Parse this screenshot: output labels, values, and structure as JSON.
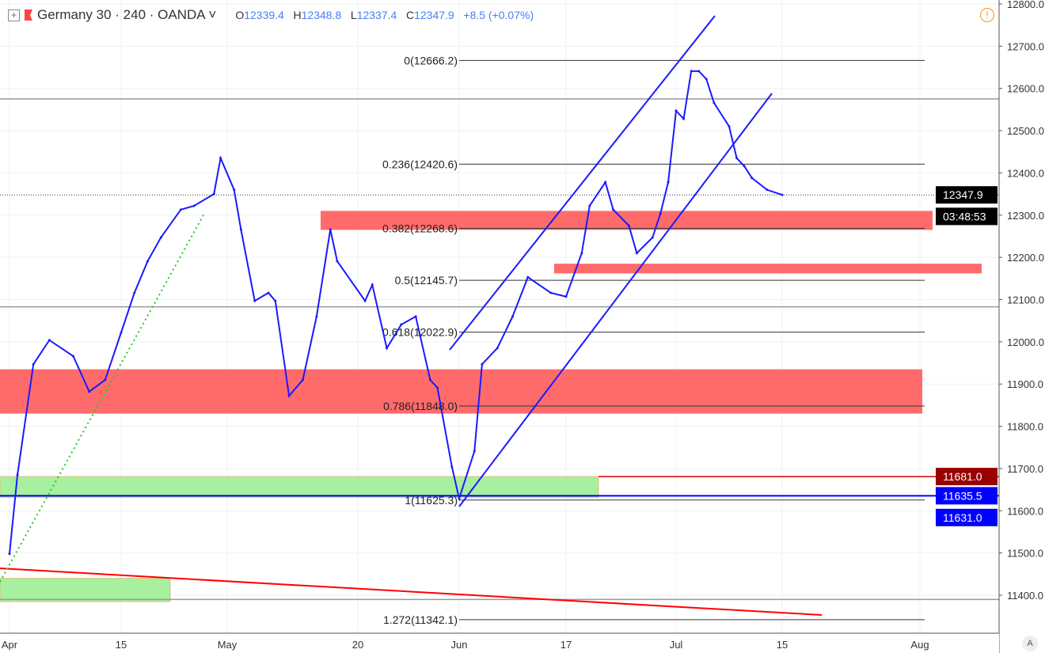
{
  "header": {
    "symbol": "Germany 30",
    "interval": "240",
    "broker": "OANDA",
    "open_label": "O",
    "open": "12339.4",
    "high_label": "H",
    "high": "12348.8",
    "low_label": "L",
    "low": "12337.4",
    "close_label": "C",
    "close": "12347.9",
    "change": "+8.5 (+0.07%)"
  },
  "auto_label": "A",
  "warning_icon": "!",
  "chart_data": {
    "type": "line",
    "title": "",
    "colors": {
      "price": "#1a1aff",
      "zone_red": "#ff6b6b",
      "zone_green": "#a6f0a0",
      "channel": "#1a1aff",
      "trend_red": "#ff0000",
      "fib": "#333333"
    },
    "ylim": [
      11400,
      12800
    ],
    "y_ticks": [
      11400,
      11500,
      11600,
      11700,
      11800,
      11900,
      12000,
      12100,
      12200,
      12300,
      12400,
      12500,
      12600,
      12700,
      12800
    ],
    "y_tick_labels": [
      "11400.0",
      "11500.0",
      "11600.0",
      "11700.0",
      "11800.0",
      "11900.0",
      "12000.0",
      "12100.0",
      "12200.0",
      "12300.0",
      "12400.0",
      "12500.0",
      "12600.0",
      "12700.0",
      "12800.0"
    ],
    "x_ticks": [
      {
        "date": "2019-04-01",
        "label": "Apr"
      },
      {
        "date": "2019-04-15",
        "label": "15"
      },
      {
        "date": "2019-05-01",
        "label": "May"
      },
      {
        "date": "2019-05-20",
        "label": "20"
      },
      {
        "date": "2019-06-03",
        "label": "Jun"
      },
      {
        "date": "2019-06-17",
        "label": "17"
      },
      {
        "date": "2019-07-01",
        "label": "Jul"
      },
      {
        "date": "2019-07-15",
        "label": "15"
      },
      {
        "date": "2019-08-01",
        "label": "Aug"
      }
    ],
    "series": [
      {
        "x": [
          "2019-04-01",
          "2019-04-02",
          "2019-04-04",
          "2019-04-06",
          "2019-04-09",
          "2019-04-11",
          "2019-04-13",
          "2019-04-15",
          "2019-04-17",
          "2019-04-19",
          "2019-04-21",
          "2019-04-24",
          "2019-04-26",
          "2019-04-29",
          "2019-04-30",
          "2019-05-02",
          "2019-05-03",
          "2019-05-05",
          "2019-05-07",
          "2019-05-08",
          "2019-05-10",
          "2019-05-12",
          "2019-05-14",
          "2019-05-16",
          "2019-05-17",
          "2019-05-21",
          "2019-05-22",
          "2019-05-24",
          "2019-05-26",
          "2019-05-28",
          "2019-05-30",
          "2019-05-31",
          "2019-06-02",
          "2019-06-03",
          "2019-06-05",
          "2019-06-06",
          "2019-06-08",
          "2019-06-10",
          "2019-06-12",
          "2019-06-15",
          "2019-06-17",
          "2019-06-19",
          "2019-06-20",
          "2019-06-22",
          "2019-06-23",
          "2019-06-25",
          "2019-06-26",
          "2019-06-28",
          "2019-06-29",
          "2019-06-30",
          "2019-07-01",
          "2019-07-02",
          "2019-07-03",
          "2019-07-04",
          "2019-07-05",
          "2019-07-06",
          "2019-07-08",
          "2019-07-09",
          "2019-07-10",
          "2019-07-11",
          "2019-07-13",
          "2019-07-15"
        ],
        "values": [
          11498,
          11685,
          11947,
          12004,
          11966,
          11882,
          11910,
          12022,
          12116,
          12191,
          12247,
          12313,
          12322,
          12350,
          12435,
          12360,
          12266,
          12097,
          12116,
          12097,
          11872,
          11910,
          12060,
          12266,
          12191,
          12097,
          12135,
          11985,
          12041,
          12060,
          11910,
          11891,
          11704,
          11629,
          11741,
          11947,
          11985,
          12060,
          12153,
          12116,
          12107,
          12210,
          12322,
          12378,
          12313,
          12275,
          12210,
          12247,
          12303,
          12378,
          12547,
          12528,
          12641,
          12641,
          12622,
          12566,
          12510,
          12435,
          12416,
          12388,
          12360,
          12348
        ]
      }
    ],
    "fib_levels": [
      {
        "label": "0(12666.2)",
        "price": 12666.2
      },
      {
        "label": "0.236(12420.6)",
        "price": 12420.6
      },
      {
        "label": "0.382(12268.6)",
        "price": 12268.6
      },
      {
        "label": "0.5(12145.7)",
        "price": 12145.7
      },
      {
        "label": "0.618(12022.9)",
        "price": 12022.9
      },
      {
        "label": "0.786(11848.0)",
        "price": 11848.0
      },
      {
        "label": "1(11625.3)",
        "price": 11625.3
      },
      {
        "label": "1.272(11342.1)",
        "price": 11342.1
      }
    ],
    "zones": [
      {
        "kind": "red",
        "top": 12310,
        "bottom": 12265
      },
      {
        "kind": "red",
        "top": 12185,
        "bottom": 12162
      },
      {
        "kind": "red",
        "top": 11935,
        "bottom": 11830
      },
      {
        "kind": "green",
        "top": 11681,
        "bottom": 11632
      },
      {
        "kind": "green",
        "top": 11440,
        "bottom": 11385
      }
    ],
    "horizontal_lines": [
      12575,
      12083,
      11390
    ],
    "price_labels": [
      {
        "text": "12347.9",
        "price": 12347.9,
        "bg": "#000000"
      },
      {
        "text": "03:48:53",
        "price": 12297,
        "bg": "#000000"
      },
      {
        "text": "11681.0",
        "price": 11681.0,
        "bg": "#990000"
      },
      {
        "text": "11635.5",
        "price": 11635.5,
        "bg": "#0000ff"
      },
      {
        "text": "11631.0",
        "price": 11584,
        "bg": "#0000ff"
      }
    ]
  }
}
